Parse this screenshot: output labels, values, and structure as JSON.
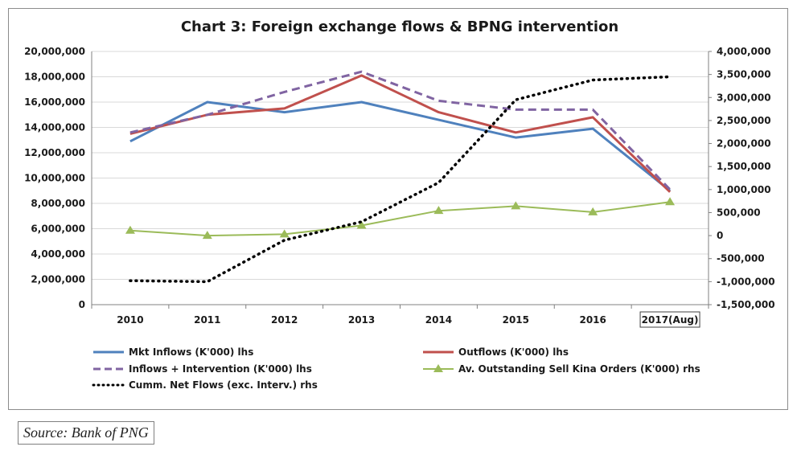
{
  "chart_data": {
    "type": "line",
    "title": "Chart 3: Foreign exchange flows & BPNG intervention",
    "categories": [
      "2010",
      "2011",
      "2012",
      "2013",
      "2014",
      "2015",
      "2016",
      "2017(Aug)"
    ],
    "y_left": {
      "min": 0,
      "max": 20000000,
      "step": 2000000,
      "ticks": [
        "0",
        "2,000,000",
        "4,000,000",
        "6,000,000",
        "8,000,000",
        "10,000,000",
        "12,000,000",
        "14,000,000",
        "16,000,000",
        "18,000,000",
        "20,000,000"
      ]
    },
    "y_right": {
      "min": -1500000,
      "max": 4000000,
      "step": 500000,
      "ticks": [
        "-1,500,000",
        "-1,000,000",
        "-500,000",
        "0",
        "500,000",
        "1,000,000",
        "1,500,000",
        "2,000,000",
        "2,500,000",
        "3,000,000",
        "3,500,000",
        "4,000,000"
      ]
    },
    "grid": true,
    "legend_position": "bottom",
    "series": [
      {
        "name": "Mkt Inflows (K'000) lhs",
        "axis": "left",
        "color": "#4f81bd",
        "style": "solid",
        "values": [
          12900000,
          16000000,
          15200000,
          16000000,
          14600000,
          13200000,
          13900000,
          9000000
        ]
      },
      {
        "name": "Outflows (K'000) lhs",
        "axis": "left",
        "color": "#c0504d",
        "style": "solid",
        "values": [
          13500000,
          15000000,
          15500000,
          18100000,
          15200000,
          13600000,
          14800000,
          8900000
        ]
      },
      {
        "name": "Inflows + Intervention (K'000) lhs",
        "axis": "left",
        "color": "#8064a2",
        "style": "dashed",
        "values": [
          13600000,
          15000000,
          16800000,
          18400000,
          16100000,
          15400000,
          15400000,
          9100000
        ]
      },
      {
        "name": "Av. Outstanding Sell Kina Orders (K'000) rhs",
        "axis": "right",
        "color": "#9bbb59",
        "style": "marker",
        "values": [
          110000,
          0,
          30000,
          220000,
          540000,
          640000,
          510000,
          730000
        ]
      },
      {
        "name": "Cumm. Net Flows (exc. Interv.) rhs",
        "axis": "right",
        "color": "#000000",
        "style": "dotted",
        "values": [
          -980000,
          -1000000,
          -100000,
          300000,
          1150000,
          2950000,
          3380000,
          3450000
        ]
      }
    ]
  },
  "source_text": "Source: Bank of PNG"
}
